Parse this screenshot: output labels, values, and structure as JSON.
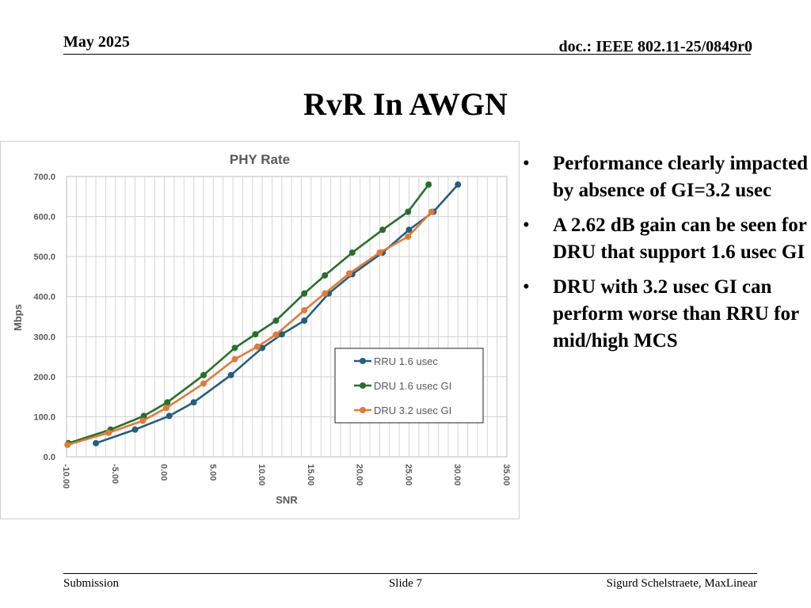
{
  "header": {
    "date": "May 2025",
    "doc": "doc.: IEEE 802.11-25/0849r0"
  },
  "slide": {
    "title": "RvR In AWGN"
  },
  "bullets": [
    "Performance clearly impacted by absence of GI=3.2 usec",
    "A 2.62 dB gain can be seen for DRU that support 1.6 usec GI",
    "DRU with 3.2 usec GI can perform worse than RRU for mid/high MCS"
  ],
  "bullet_glyph": "•",
  "footer": {
    "left": "Submission",
    "center": "Slide 7",
    "right": "Sigurd Schelstraete, MaxLinear"
  },
  "chart_data": {
    "type": "line",
    "title": "PHY Rate",
    "xlabel": "SNR",
    "ylabel": "Mbps",
    "xlim": [
      -10,
      35
    ],
    "ylim": [
      0,
      700
    ],
    "x_ticks": [
      -10,
      -5,
      0,
      5,
      10,
      15,
      20,
      25,
      30,
      35
    ],
    "x_tick_labels": [
      "-10.00",
      "-5.00",
      "0.00",
      "5.00",
      "10.00",
      "15.00",
      "20.00",
      "25.00",
      "30.00",
      "35.00"
    ],
    "y_ticks": [
      0,
      100,
      200,
      300,
      400,
      500,
      600,
      700
    ],
    "y_tick_labels": [
      "0.0",
      "100.0",
      "200.0",
      "300.0",
      "400.0",
      "500.0",
      "600.0",
      "700.0"
    ],
    "grid": true,
    "minor_x_grid_step": 1,
    "legend_position": "center-right",
    "series": [
      {
        "name": "RRU 1.6 usec",
        "color": "#255e7e",
        "points": [
          [
            -7.0,
            34
          ],
          [
            -3.0,
            68
          ],
          [
            0.5,
            102
          ],
          [
            3.0,
            136
          ],
          [
            6.8,
            204
          ],
          [
            10.0,
            272
          ],
          [
            12.0,
            306
          ],
          [
            14.3,
            340
          ],
          [
            16.8,
            408
          ],
          [
            19.2,
            456
          ],
          [
            22.3,
            510
          ],
          [
            25.0,
            567
          ],
          [
            27.5,
            612
          ],
          [
            30.0,
            680
          ]
        ]
      },
      {
        "name": "DRU 1.6 usec GI",
        "color": "#2a6e2d",
        "points": [
          [
            -9.8,
            34
          ],
          [
            -5.5,
            68
          ],
          [
            -2.1,
            102
          ],
          [
            0.3,
            136
          ],
          [
            4.0,
            204
          ],
          [
            7.2,
            272
          ],
          [
            9.3,
            306
          ],
          [
            11.4,
            340
          ],
          [
            14.3,
            408
          ],
          [
            16.4,
            453
          ],
          [
            19.2,
            510
          ],
          [
            22.3,
            567
          ],
          [
            24.9,
            612
          ],
          [
            27.0,
            680
          ]
        ]
      },
      {
        "name": "DRU 3.2 usec GI",
        "color": "#e07b39",
        "points": [
          [
            -9.9,
            30
          ],
          [
            -5.7,
            60
          ],
          [
            -2.2,
            90
          ],
          [
            0.2,
            122
          ],
          [
            4.0,
            183
          ],
          [
            7.2,
            244
          ],
          [
            9.5,
            275
          ],
          [
            11.4,
            305
          ],
          [
            14.3,
            366
          ],
          [
            16.4,
            408
          ],
          [
            18.9,
            458
          ],
          [
            22.0,
            510
          ],
          [
            24.9,
            550
          ],
          [
            27.3,
            612
          ]
        ]
      }
    ]
  }
}
